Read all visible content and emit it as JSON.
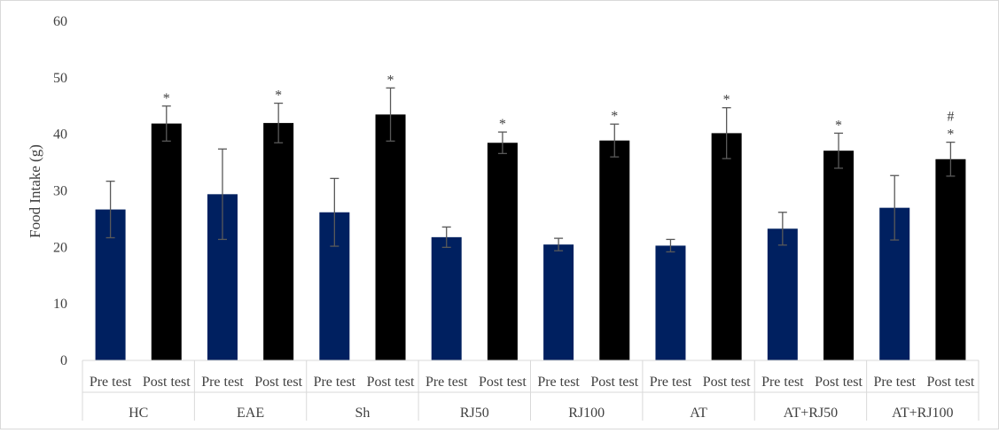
{
  "chart_data": {
    "type": "bar",
    "ylabel": "Food Intake (g)",
    "ylim": [
      0,
      60
    ],
    "yticks": [
      0,
      10,
      20,
      30,
      40,
      50,
      60
    ],
    "grid": false,
    "groups": [
      "HC",
      "EAE",
      "Sh",
      "RJ50",
      "RJ100",
      "AT",
      "AT+RJ50",
      "AT+RJ100"
    ],
    "subcategories": [
      "Pre test",
      "Post test"
    ],
    "series": [
      {
        "name": "Pre test",
        "color": "#002060",
        "values": [
          26.7,
          29.4,
          26.2,
          21.8,
          20.5,
          20.3,
          23.3,
          27.0
        ],
        "errors": [
          5.0,
          8.0,
          6.0,
          1.8,
          1.1,
          1.1,
          2.9,
          5.7
        ]
      },
      {
        "name": "Post test",
        "color": "#000000",
        "values": [
          41.9,
          42.0,
          43.5,
          38.5,
          38.9,
          40.2,
          37.1,
          35.6
        ],
        "errors": [
          3.1,
          3.5,
          4.7,
          1.9,
          2.9,
          4.5,
          3.1,
          3.0
        ]
      }
    ],
    "annotations": [
      {
        "group": "HC",
        "bar": "Post test",
        "lines": [
          "*"
        ]
      },
      {
        "group": "EAE",
        "bar": "Post test",
        "lines": [
          "*"
        ]
      },
      {
        "group": "Sh",
        "bar": "Post test",
        "lines": [
          "*"
        ]
      },
      {
        "group": "RJ50",
        "bar": "Post test",
        "lines": [
          "*"
        ]
      },
      {
        "group": "RJ100",
        "bar": "Post test",
        "lines": [
          "*"
        ]
      },
      {
        "group": "AT",
        "bar": "Post test",
        "lines": [
          "*"
        ]
      },
      {
        "group": "AT+RJ50",
        "bar": "Post test",
        "lines": [
          "*"
        ]
      },
      {
        "group": "AT+RJ100",
        "bar": "Post test",
        "lines": [
          "#",
          "*"
        ]
      }
    ]
  }
}
